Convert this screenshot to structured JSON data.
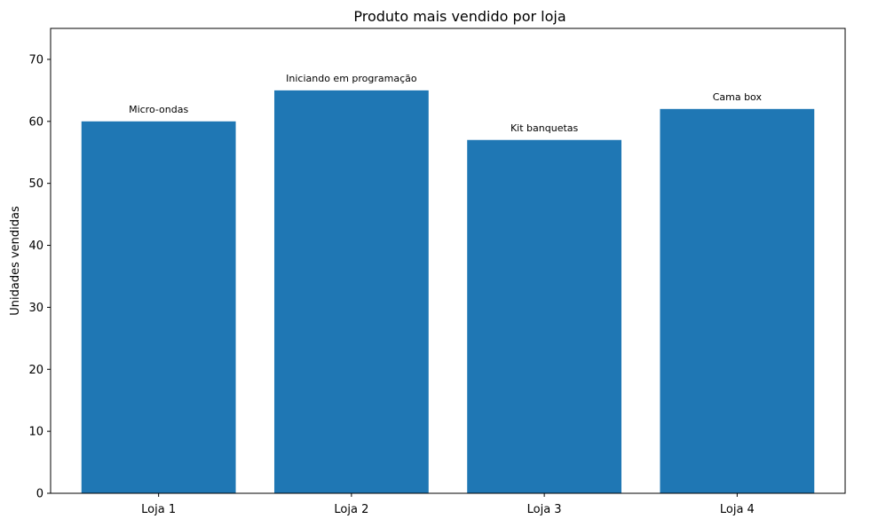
{
  "chart_data": {
    "type": "bar",
    "title": "Produto mais vendido por loja",
    "xlabel": "",
    "ylabel": "Unidades vendidas",
    "categories": [
      "Loja 1",
      "Loja 2",
      "Loja 3",
      "Loja 4"
    ],
    "values": [
      60,
      65,
      57,
      62
    ],
    "bar_labels": [
      "Micro-ondas",
      "Iniciando em programação",
      "Kit banquetas",
      "Cama box"
    ],
    "ylim": [
      0,
      75
    ],
    "yticks": [
      0,
      10,
      20,
      30,
      40,
      50,
      60,
      70
    ],
    "grid": false,
    "colors": {
      "bar": "#1f77b4",
      "axis": "#000000"
    }
  }
}
